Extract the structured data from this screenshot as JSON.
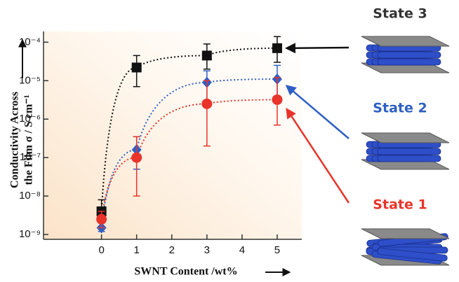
{
  "chart_data": {
    "type": "scatter",
    "x_label": "SWNT Content /wt%",
    "y_label": [
      "Conductivity Across",
      "the Film σ / S cm⁻¹"
    ],
    "x": [
      0,
      1,
      3,
      5
    ],
    "xlim": [
      -1.65,
      5.7
    ],
    "xticks": [
      0,
      1,
      2,
      3,
      4,
      5
    ],
    "ylim": [
      7.5e-10,
      0.00019
    ],
    "log_y": true,
    "yticks": [
      {
        "value": 1e-09,
        "label": "10⁻⁹"
      },
      {
        "value": 1e-08,
        "label": "10⁻⁸"
      },
      {
        "value": 1e-07,
        "label": "10⁻⁷"
      },
      {
        "value": 1e-06,
        "label": "10⁻⁶"
      },
      {
        "value": 1e-05,
        "label": "10⁻⁵"
      },
      {
        "value": 0.0001,
        "label": "10⁻⁴"
      }
    ],
    "series": [
      {
        "name": "State 3",
        "color": "#111111",
        "marker": "square",
        "values": [
          4e-09,
          2.2e-05,
          4.5e-05,
          7e-05
        ],
        "lower": [
          3e-09,
          7e-06,
          2e-05,
          3e-05
        ],
        "upper": [
          8e-09,
          4.5e-05,
          9e-05,
          0.00014
        ]
      },
      {
        "name": "State 2",
        "color": "#2f5fc4",
        "marker": "diamond",
        "values": [
          1.5e-09,
          1.6e-07,
          9e-06,
          1.1e-05
        ],
        "lower": [
          1.2e-09,
          5e-08,
          3e-06,
          4e-06
        ],
        "upper": [
          2e-09,
          3.5e-07,
          1.8e-05,
          2.5e-05
        ]
      },
      {
        "name": "State 1",
        "color": "#e8342a",
        "marker": "circle",
        "values": [
          2.5e-09,
          1e-07,
          2.5e-06,
          3.2e-06
        ],
        "lower": [
          1.5e-09,
          1e-08,
          2e-07,
          7e-07
        ],
        "upper": [
          4e-09,
          3.5e-07,
          1e-05,
          1.2e-05
        ]
      }
    ]
  }
}
